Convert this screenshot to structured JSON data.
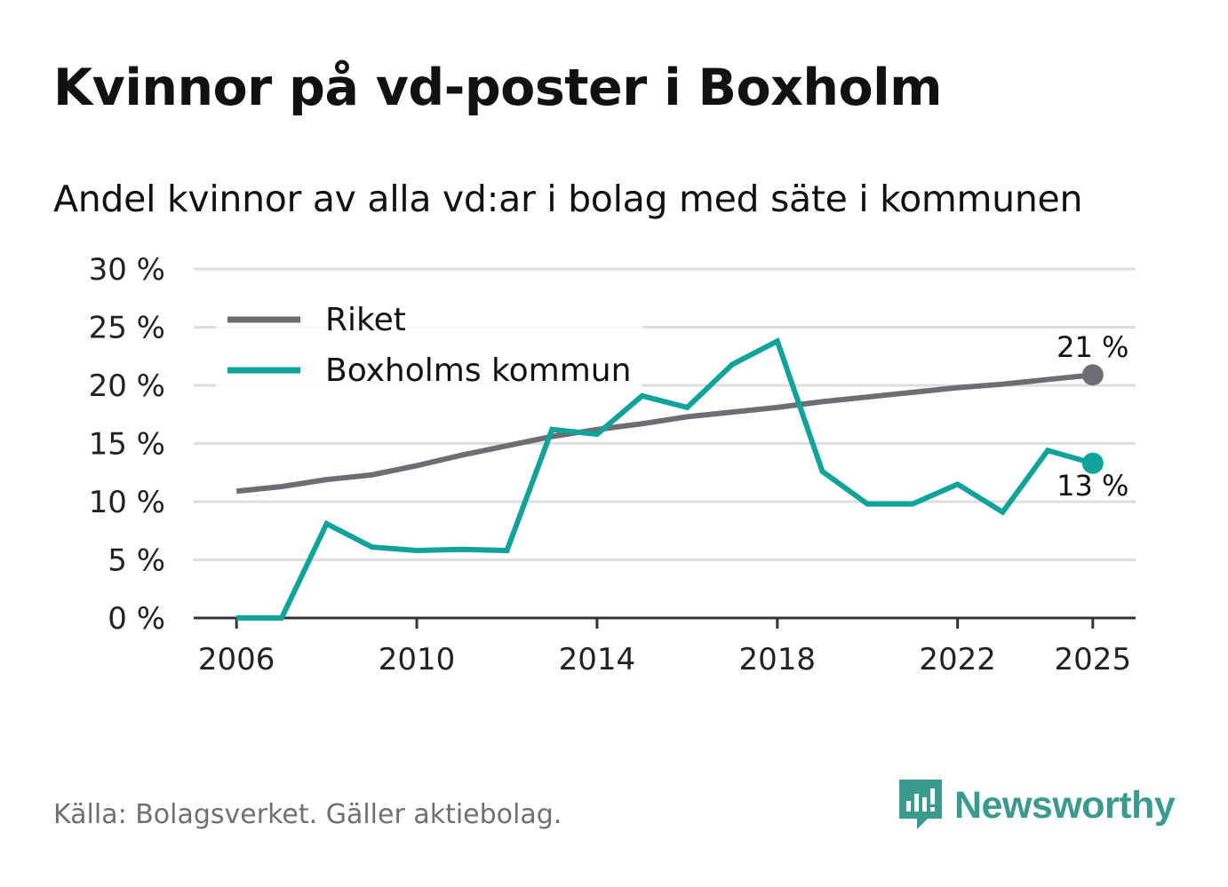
{
  "header": {
    "title": "Kvinnor på vd-poster i Boxholm",
    "subtitle": "Andel kvinnor av alla vd:ar i bolag med säte i kommunen"
  },
  "footer": {
    "source": "Källa: Bolagsverket. Gäller aktiebolag.",
    "brand": "Newsworthy"
  },
  "colors": {
    "riket": "#6e6d73",
    "kommun": "#10a39a",
    "grid": "#dddddd",
    "axis": "#333333",
    "brand": "#3a9a8e"
  },
  "chart_data": {
    "type": "line",
    "title": "Kvinnor på vd-poster i Boxholm",
    "subtitle": "Andel kvinnor av alla vd:ar i bolag med säte i kommunen",
    "xlabel": "",
    "ylabel": "",
    "x": [
      2006,
      2007,
      2008,
      2009,
      2010,
      2011,
      2012,
      2013,
      2014,
      2015,
      2016,
      2017,
      2018,
      2019,
      2020,
      2021,
      2022,
      2023,
      2024,
      2025
    ],
    "xticks": [
      2006,
      2010,
      2014,
      2018,
      2022,
      2025
    ],
    "xtick_labels": [
      "2006",
      "2010",
      "2014",
      "2018",
      "2022",
      "2025"
    ],
    "yticks": [
      0,
      5,
      10,
      15,
      20,
      25,
      30
    ],
    "ytick_labels": [
      "0 %",
      "5 %",
      "10 %",
      "15 %",
      "20 %",
      "25 %",
      "30 %"
    ],
    "ylim": [
      0,
      30
    ],
    "xlim": [
      2005.05,
      2025.95
    ],
    "grid": true,
    "legend_position": "top-left",
    "series": [
      {
        "name": "Riket",
        "color": "#6e6d73",
        "values": [
          10.9,
          11.3,
          11.9,
          12.3,
          13.1,
          14.0,
          14.8,
          15.6,
          16.2,
          16.7,
          17.3,
          17.7,
          18.1,
          18.6,
          19.0,
          19.4,
          19.8,
          20.1,
          20.5,
          20.9
        ],
        "end_label": "21 %"
      },
      {
        "name": "Boxholms kommun",
        "color": "#10a39a",
        "values": [
          0,
          0,
          8.1,
          6.1,
          5.8,
          5.9,
          5.8,
          16.2,
          15.8,
          19.1,
          18.1,
          21.8,
          23.8,
          12.6,
          9.8,
          9.8,
          11.5,
          9.1,
          14.4,
          13.3
        ],
        "end_label": "13 %"
      }
    ]
  }
}
